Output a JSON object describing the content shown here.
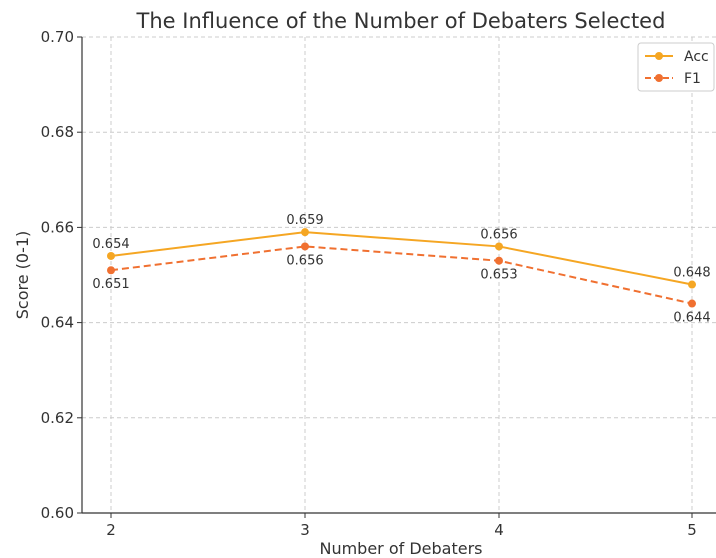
{
  "chart_data": {
    "type": "line",
    "title": "The Influence of the Number of Debaters Selected",
    "xlabel": "Number of Debaters",
    "ylabel": "Score (0-1)",
    "x": [
      2,
      3,
      4,
      5
    ],
    "x_tick_labels": [
      "2",
      "3",
      "4",
      "5"
    ],
    "ylim": [
      0.6,
      0.7
    ],
    "y_ticks": [
      0.6,
      0.62,
      0.64,
      0.66,
      0.68,
      0.7
    ],
    "y_tick_labels": [
      "0.60",
      "0.62",
      "0.64",
      "0.66",
      "0.68",
      "0.70"
    ],
    "grid": true,
    "legend_position": "top-right",
    "series": [
      {
        "name": "Acc",
        "values": [
          0.654,
          0.659,
          0.656,
          0.648
        ],
        "labels": [
          "0.654",
          "0.659",
          "0.656",
          "0.648"
        ],
        "color": "#f5a623",
        "line_style": "solid"
      },
      {
        "name": "F1",
        "values": [
          0.651,
          0.656,
          0.653,
          0.644
        ],
        "labels": [
          "0.651",
          "0.656",
          "0.653",
          "0.644"
        ],
        "color": "#f07030",
        "line_style": "dashed"
      }
    ]
  }
}
